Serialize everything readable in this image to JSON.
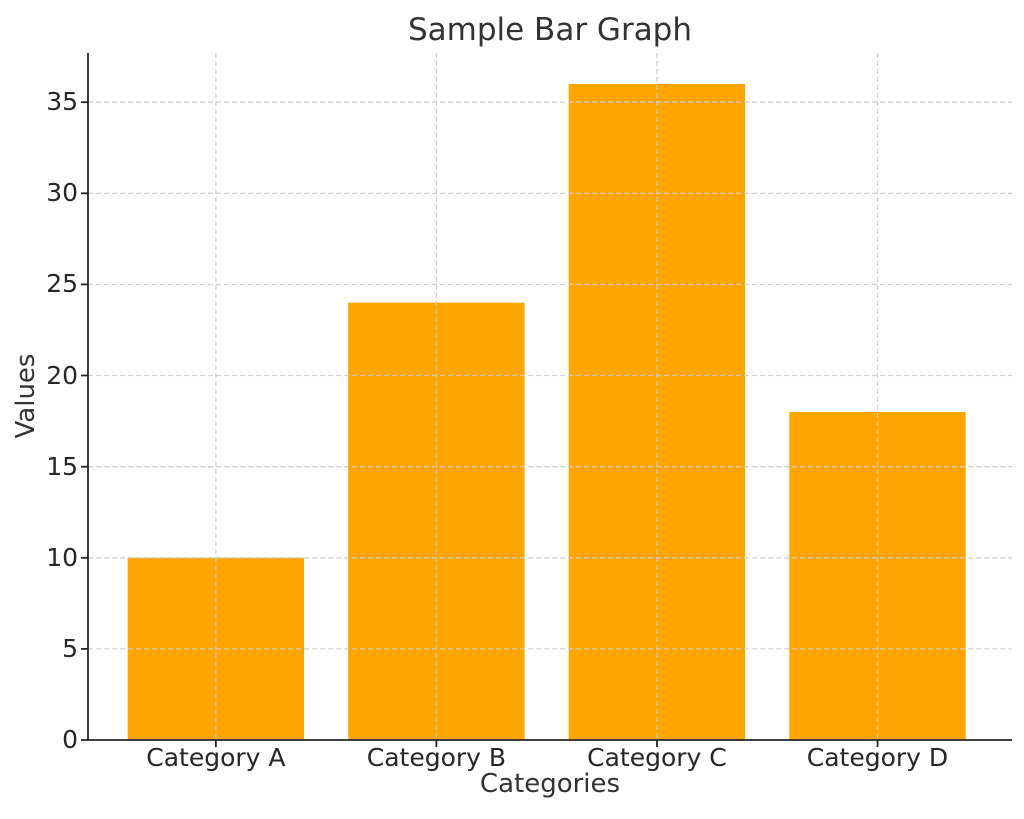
{
  "chart_data": {
    "type": "bar",
    "title": "Sample Bar Graph",
    "xlabel": "Categories",
    "ylabel": "Values",
    "categories": [
      "Category A",
      "Category B",
      "Category C",
      "Category D"
    ],
    "values": [
      10,
      24,
      36,
      18
    ],
    "yticks": [
      0,
      5,
      10,
      15,
      20,
      25,
      30,
      35
    ],
    "ylim": [
      0,
      37.7
    ],
    "xlim": [
      -0.58,
      3.61
    ],
    "bar_width": 0.8,
    "grid": true,
    "grid_style": "dashed",
    "legend": false,
    "colors": {
      "bar": "#FFA500",
      "grid": "#cccccc",
      "axis": "#262626",
      "text": "#333333",
      "background": "#ffffff"
    }
  }
}
